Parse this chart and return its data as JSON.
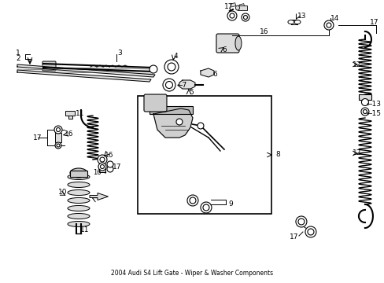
{
  "title": "2004 Audi S4 Lift Gate - Wiper & Washer Components",
  "bg": "#ffffff",
  "lc": "#000000",
  "fw": 4.89,
  "fh": 3.6,
  "dpi": 100
}
